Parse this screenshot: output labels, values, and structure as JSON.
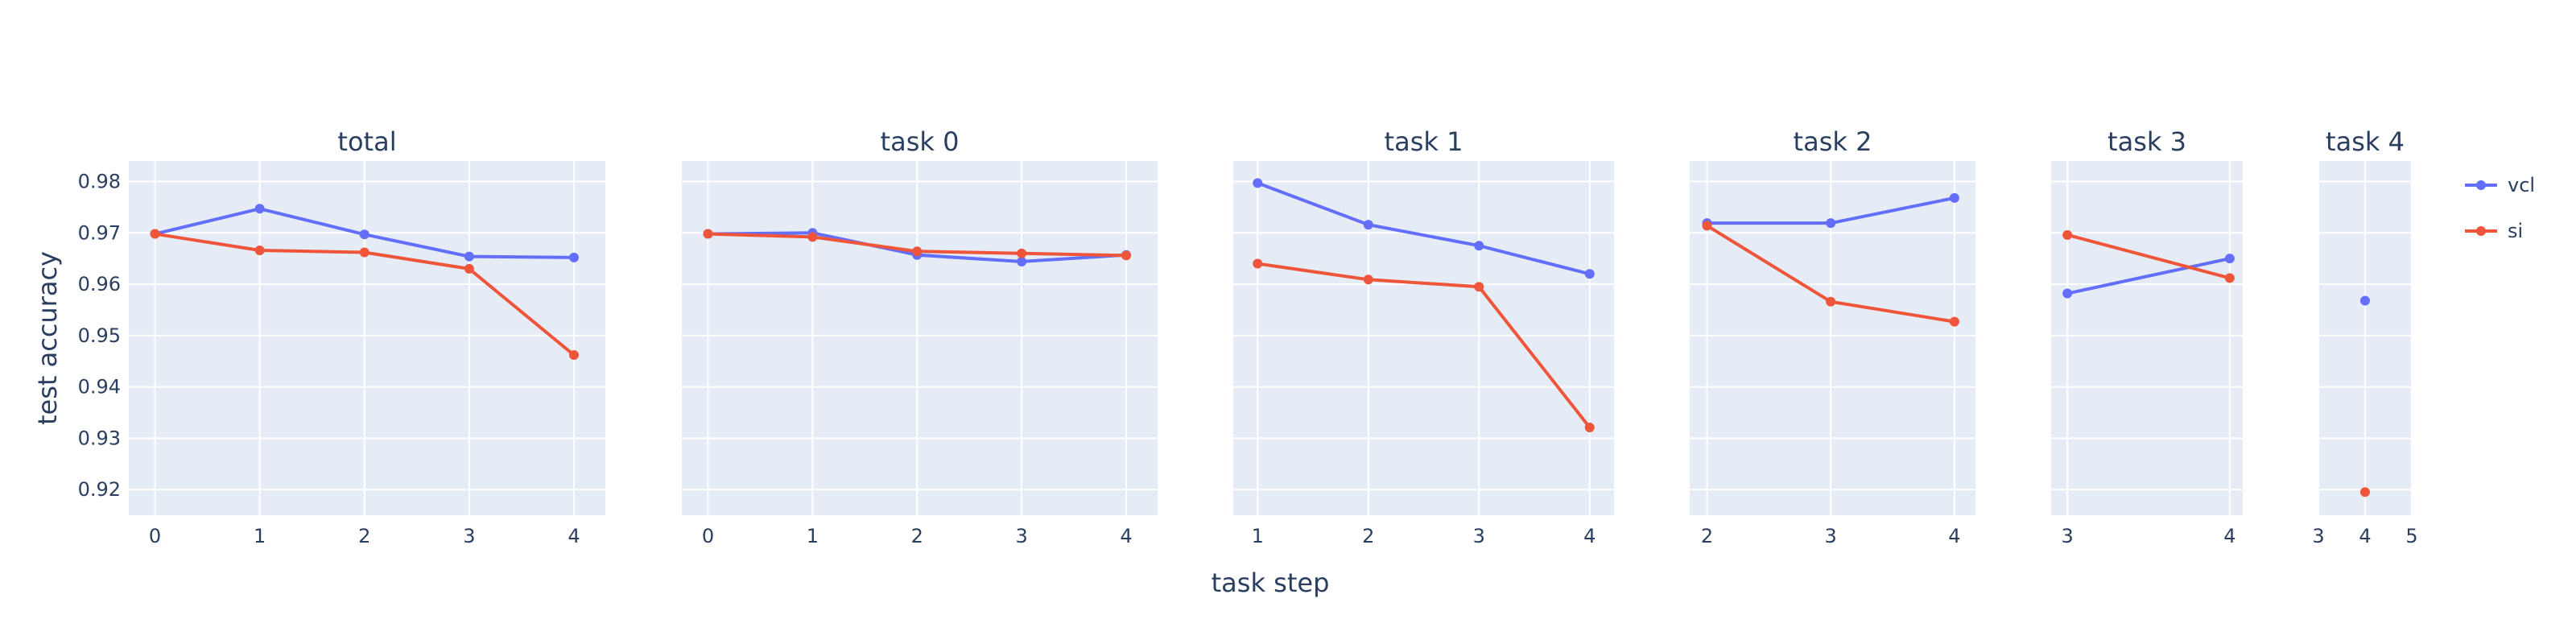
{
  "chart_data": {
    "type": "line",
    "ylabel": "test accuracy",
    "xlabel": "task step",
    "ylim": [
      0.915,
      0.984
    ],
    "yticks": [
      0.92,
      0.93,
      0.94,
      0.95,
      0.96,
      0.97,
      0.98
    ],
    "grid": true,
    "legend_position": "top-right",
    "series_styles": [
      {
        "name": "vcl",
        "color": "#636efa"
      },
      {
        "name": "si",
        "color": "#ef553b"
      }
    ],
    "panels": [
      {
        "title": "total",
        "xlim": [
          -0.25,
          4.3
        ],
        "xticks": [
          0,
          1,
          2,
          3,
          4
        ],
        "series": [
          {
            "name": "vcl",
            "x": [
              0,
              1,
              2,
              3,
              4
            ],
            "y": [
              0.9698,
              0.9747,
              0.9697,
              0.9654,
              0.9652
            ]
          },
          {
            "name": "si",
            "x": [
              0,
              1,
              2,
              3,
              4
            ],
            "y": [
              0.9698,
              0.9666,
              0.9662,
              0.963,
              0.9462
            ]
          }
        ]
      },
      {
        "title": "task 0",
        "xlim": [
          -0.25,
          4.3
        ],
        "xticks": [
          0,
          1,
          2,
          3,
          4
        ],
        "series": [
          {
            "name": "vcl",
            "x": [
              0,
              1,
              2,
              3,
              4
            ],
            "y": [
              0.9698,
              0.97,
              0.9657,
              0.9644,
              0.9657
            ]
          },
          {
            "name": "si",
            "x": [
              0,
              1,
              2,
              3,
              4
            ],
            "y": [
              0.9698,
              0.9692,
              0.9664,
              0.966,
              0.9656
            ]
          }
        ]
      },
      {
        "title": "task 1",
        "xlim": [
          0.78,
          4.22
        ],
        "xticks": [
          1,
          2,
          3,
          4
        ],
        "series": [
          {
            "name": "vcl",
            "x": [
              1,
              2,
              3,
              4
            ],
            "y": [
              0.9797,
              0.9716,
              0.9675,
              0.962
            ]
          },
          {
            "name": "si",
            "x": [
              1,
              2,
              3,
              4
            ],
            "y": [
              0.964,
              0.9609,
              0.9595,
              0.9321
            ]
          }
        ]
      },
      {
        "title": "task 2",
        "xlim": [
          1.86,
          4.17
        ],
        "xticks": [
          2,
          3,
          4
        ],
        "series": [
          {
            "name": "vcl",
            "x": [
              2,
              3,
              4
            ],
            "y": [
              0.9719,
              0.9719,
              0.9768
            ]
          },
          {
            "name": "si",
            "x": [
              2,
              3,
              4
            ],
            "y": [
              0.9714,
              0.9566,
              0.9527
            ]
          }
        ]
      },
      {
        "title": "task 3",
        "xlim": [
          2.9,
          4.08
        ],
        "xticks": [
          3,
          4
        ],
        "series": [
          {
            "name": "vcl",
            "x": [
              3,
              4
            ],
            "y": [
              0.9582,
              0.965
            ]
          },
          {
            "name": "si",
            "x": [
              3,
              4
            ],
            "y": [
              0.9696,
              0.9612
            ]
          }
        ]
      },
      {
        "title": "task 4",
        "xlim": [
          3.0,
          5.0
        ],
        "xticks": [
          3,
          4,
          5
        ],
        "series": [
          {
            "name": "vcl",
            "x": [
              4
            ],
            "y": [
              0.9568
            ]
          },
          {
            "name": "si",
            "x": [
              4
            ],
            "y": [
              0.9195
            ]
          }
        ]
      }
    ]
  }
}
